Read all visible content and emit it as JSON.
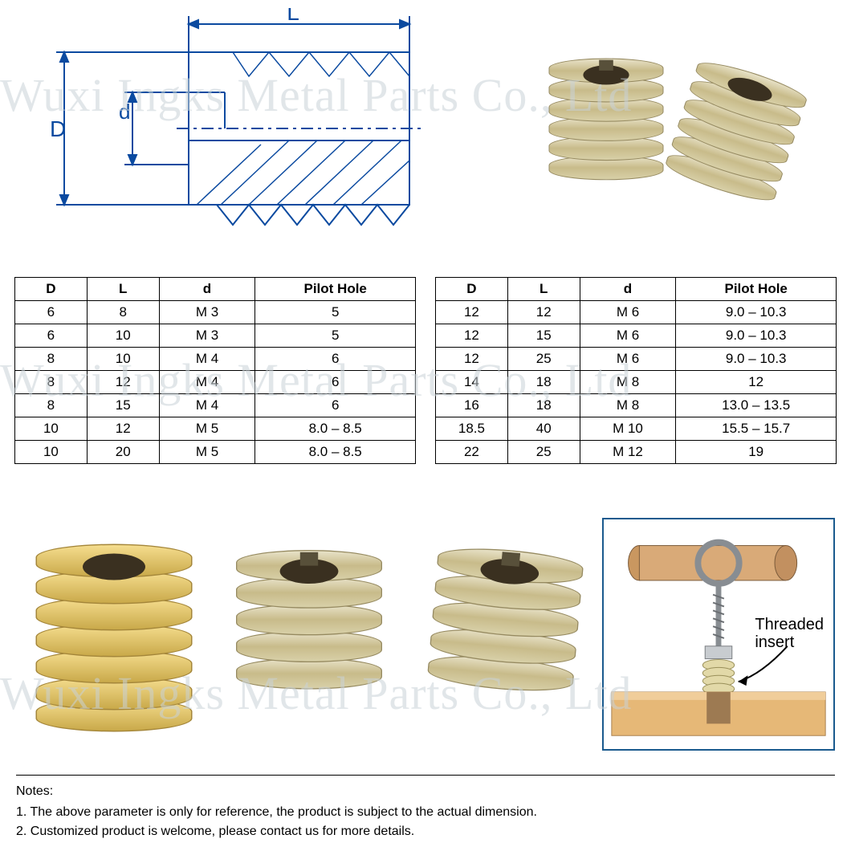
{
  "watermark_text": "Wuxi Ingks Metal Parts Co., Ltd",
  "diagram": {
    "labels": {
      "L": "L",
      "D": "D",
      "d": "d"
    },
    "line_color": "#0b4aa0",
    "line_width": 2
  },
  "table_left": {
    "columns": [
      "D",
      "L",
      "d",
      "Pilot Hole"
    ],
    "rows": [
      [
        "6",
        "8",
        "M 3",
        "5"
      ],
      [
        "6",
        "10",
        "M 3",
        "5"
      ],
      [
        "8",
        "10",
        "M 4",
        "6"
      ],
      [
        "8",
        "12",
        "M 4",
        "6"
      ],
      [
        "8",
        "15",
        "M 4",
        "6"
      ],
      [
        "10",
        "12",
        "M 5",
        "8.0 – 8.5"
      ],
      [
        "10",
        "20",
        "M 5",
        "8.0 – 8.5"
      ]
    ],
    "col_widths_pct": [
      18,
      18,
      24,
      40
    ]
  },
  "table_right": {
    "columns": [
      "D",
      "L",
      "d",
      "Pilot Hole"
    ],
    "rows": [
      [
        "12",
        "12",
        "M 6",
        "9.0 – 10.3"
      ],
      [
        "12",
        "15",
        "M 6",
        "9.0 – 10.3"
      ],
      [
        "12",
        "25",
        "M 6",
        "9.0 – 10.3"
      ],
      [
        "14",
        "18",
        "M 8",
        "12"
      ],
      [
        "16",
        "18",
        "M 8",
        "13.0 – 13.5"
      ],
      [
        "18.5",
        "40",
        "M 10",
        "15.5 – 15.7"
      ],
      [
        "22",
        "25",
        "M 12",
        "19"
      ]
    ],
    "col_widths_pct": [
      18,
      18,
      24,
      40
    ]
  },
  "usage": {
    "label": "Threaded\ninsert",
    "wood_color": "#e6b877",
    "rod_color": "#c99760",
    "metal_color": "#9aa2a8",
    "outline_color": "#1a5a8e"
  },
  "notes": {
    "title": "Notes:",
    "lines": [
      "1. The above parameter is only for reference, the product is subject to the actual dimension.",
      "2. Customized product is welcome, please contact us for more details."
    ]
  },
  "colors": {
    "brass": "#d9b95a",
    "zinc": "#d6cca0",
    "table_border": "#000000",
    "background": "#ffffff"
  }
}
